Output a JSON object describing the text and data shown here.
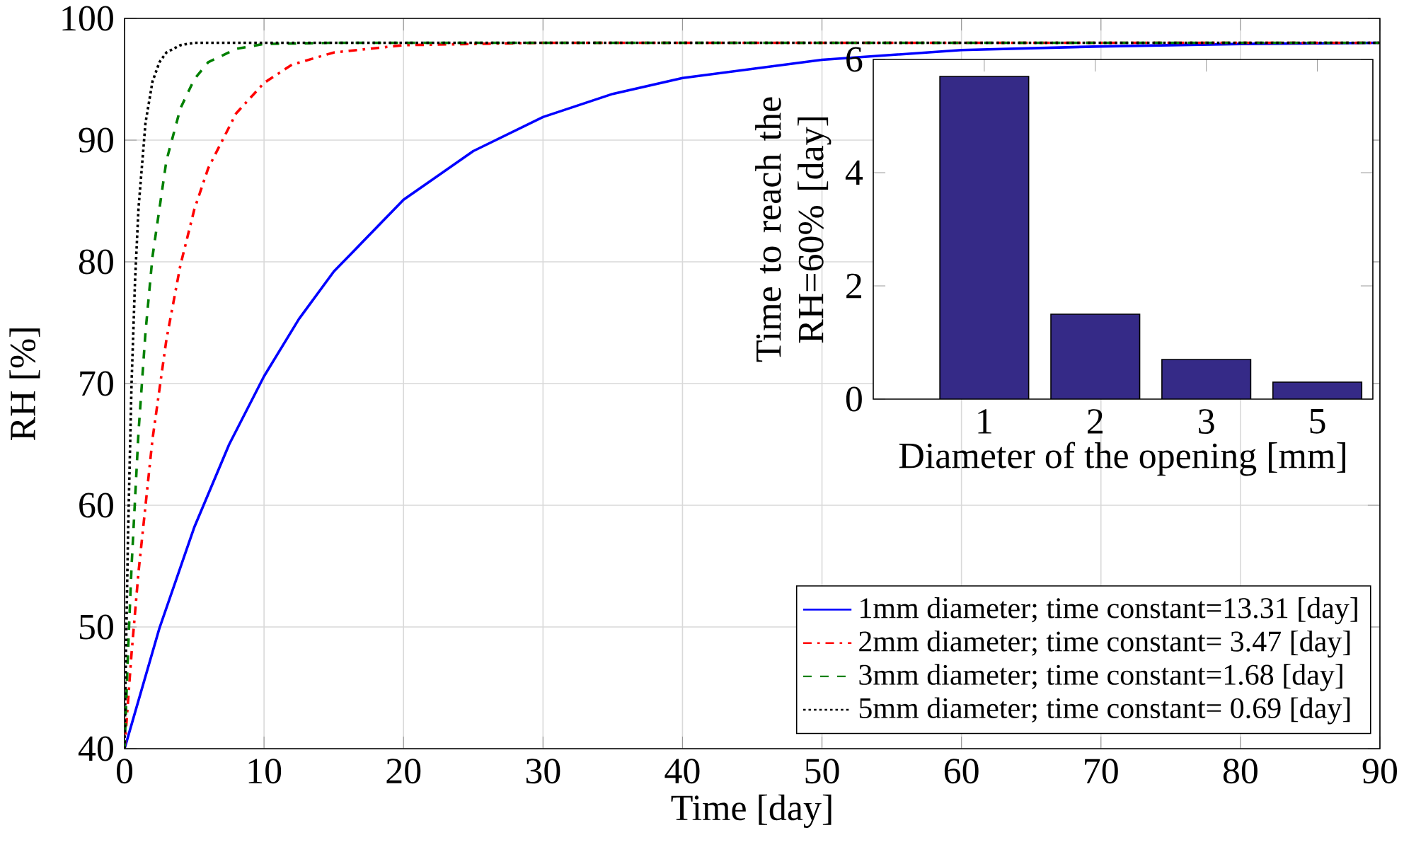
{
  "chart_data": [
    {
      "type": "line",
      "xlabel": "Time [day]",
      "ylabel": "RH [%]",
      "xlim": [
        0,
        90
      ],
      "ylim": [
        40,
        100
      ],
      "xticks": [
        0,
        10,
        20,
        30,
        40,
        50,
        60,
        70,
        80,
        90
      ],
      "yticks": [
        40,
        50,
        60,
        70,
        80,
        90,
        100
      ],
      "grid": true,
      "legend": "bottom right",
      "series": [
        {
          "name": "1mm diameter; time constant=13.31 [day]",
          "color": "#0000ff",
          "line_style": "solid",
          "x": [
            0,
            2.5,
            5,
            7.5,
            10,
            12.5,
            15,
            20,
            25,
            30,
            35,
            40,
            50,
            60,
            70,
            80,
            90
          ],
          "values": [
            40,
            49.9,
            58.2,
            65.0,
            70.6,
            75.3,
            79.2,
            85.1,
            89.1,
            91.9,
            93.8,
            95.1,
            96.6,
            97.4,
            97.7,
            97.9,
            98
          ]
        },
        {
          "name": "2mm diameter; time constant= 3.47 [day]",
          "color": "#ff0000",
          "line_style": "dashdot",
          "x": [
            0,
            0.5,
            1,
            2,
            3,
            4,
            5,
            6,
            8,
            10,
            12,
            15,
            20,
            30,
            90
          ],
          "values": [
            40,
            47.8,
            54.5,
            65.4,
            73.6,
            79.7,
            84.3,
            87.7,
            92.2,
            94.7,
            96.2,
            97.2,
            97.8,
            98,
            98
          ]
        },
        {
          "name": "3mm diameter; time constant=1.68 [day]",
          "color": "#008000",
          "line_style": "dashed",
          "x": [
            0,
            0.25,
            0.5,
            1,
            1.5,
            2,
            3,
            4,
            5,
            6,
            8,
            10,
            15,
            90
          ],
          "values": [
            40,
            48.0,
            54.9,
            66.0,
            74.2,
            80.4,
            88.3,
            92.6,
            95.0,
            96.4,
            97.5,
            97.9,
            98,
            98
          ]
        },
        {
          "name": "5mm diameter; time constant= 0.69 [day]",
          "color": "#000000",
          "line_style": "dotted",
          "x": [
            0,
            0.1,
            0.25,
            0.5,
            0.75,
            1,
            1.5,
            2,
            2.5,
            3,
            4,
            5,
            90
          ],
          "values": [
            40,
            47.8,
            57.6,
            69.9,
            78.4,
            84.4,
            91.4,
            94.8,
            96.4,
            97.2,
            97.8,
            98,
            98
          ]
        }
      ]
    },
    {
      "type": "bar",
      "xlabel": "Diameter of the opening [mm]",
      "ylabel": "Time to reach the RH=60% [day]",
      "categories": [
        "1",
        "2",
        "3",
        "5"
      ],
      "values": [
        5.7,
        1.5,
        0.7,
        0.3
      ],
      "color": "#352a87",
      "ylim": [
        0,
        6
      ],
      "yticks": [
        0,
        2,
        4,
        6
      ]
    }
  ]
}
